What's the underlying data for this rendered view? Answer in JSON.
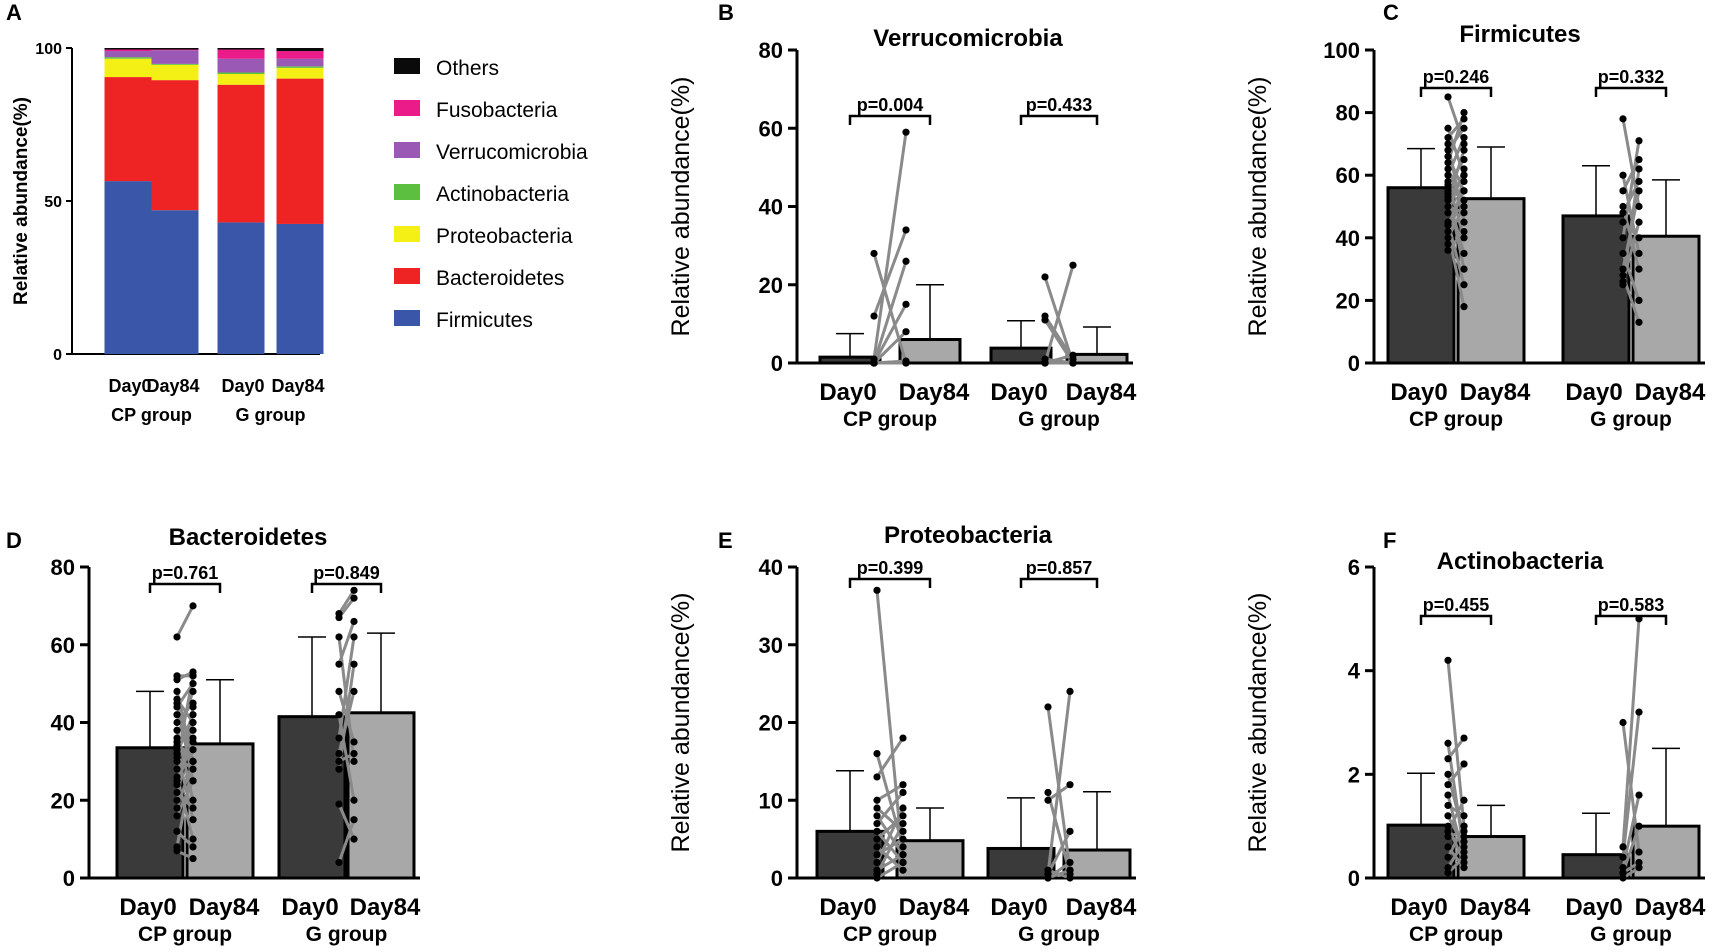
{
  "chart_data": [
    {
      "id": "A",
      "panel_label": "A",
      "type": "stacked-bar",
      "title": "",
      "xlabel": "",
      "ylabel": "Relative abundance(%)",
      "ylim": [
        0,
        100
      ],
      "yticks": [
        "0",
        "50",
        "100"
      ],
      "categories": [
        "Day0",
        "Day84",
        "Day0",
        "Day84"
      ],
      "groups": [
        "CP group",
        "G group"
      ],
      "legend_order": [
        "Others",
        "Fusobacteria",
        "Verrucomicrobia",
        "Actinobacteria",
        "Proteobacteria",
        "Bacteroidetes",
        "Firmicutes"
      ],
      "series": [
        {
          "name": "Firmicutes",
          "color": "#3a56a8",
          "values": [
            56.5,
            47.0,
            43.0,
            42.5
          ]
        },
        {
          "name": "Bacteroidetes",
          "color": "#ee2424",
          "values": [
            34.0,
            42.5,
            45.0,
            47.5
          ]
        },
        {
          "name": "Proteobacteria",
          "color": "#f4f015",
          "values": [
            6.0,
            5.0,
            3.5,
            3.5
          ]
        },
        {
          "name": "Actinobacteria",
          "color": "#5cbf40",
          "values": [
            0.5,
            0.3,
            0.5,
            0.5
          ]
        },
        {
          "name": "Verrucomicrobia",
          "color": "#9b59b6",
          "values": [
            2.0,
            4.5,
            4.5,
            2.5
          ]
        },
        {
          "name": "Fusobacteria",
          "color": "#ec1b8a",
          "values": [
            0.5,
            0.2,
            3.0,
            2.5
          ]
        },
        {
          "name": "Others",
          "color": "#0a0a0a",
          "values": [
            0.5,
            0.5,
            0.5,
            1.0
          ]
        }
      ]
    },
    {
      "id": "B",
      "panel_label": "B",
      "type": "bar",
      "title": "Verrucomicrobia",
      "ylabel": "Relative abundance(%)",
      "ylim": [
        0,
        80
      ],
      "yticks": [
        "0",
        "20",
        "40",
        "60",
        "80"
      ],
      "categories": [
        "Day0",
        "Day84",
        "Day0",
        "Day84"
      ],
      "groups": [
        "CP group",
        "G group"
      ],
      "means": [
        1.5,
        6.0,
        3.8,
        2.2
      ],
      "sd": [
        6.0,
        14.0,
        7.0,
        7.0
      ],
      "p_values": [
        "p=0.004",
        "p=0.433"
      ],
      "pairs_cp": [
        [
          28,
          0
        ],
        [
          12,
          34
        ],
        [
          1,
          59
        ],
        [
          0,
          26
        ],
        [
          0,
          15
        ],
        [
          0,
          8
        ],
        [
          0,
          0.5
        ],
        [
          0,
          0.3
        ],
        [
          0,
          0
        ],
        [
          0,
          0
        ]
      ],
      "pairs_g": [
        [
          22,
          0
        ],
        [
          12,
          1
        ],
        [
          11,
          0
        ],
        [
          0,
          25
        ],
        [
          0,
          2
        ],
        [
          0,
          0
        ],
        [
          0,
          0
        ],
        [
          1,
          0
        ]
      ]
    },
    {
      "id": "C",
      "panel_label": "C",
      "type": "bar",
      "title": "Firmicutes",
      "ylabel": "Relative abundance(%)",
      "ylim": [
        0,
        100
      ],
      "yticks": [
        "0",
        "20",
        "40",
        "60",
        "80",
        "100"
      ],
      "categories": [
        "Day0",
        "Day84",
        "Day0",
        "Day84"
      ],
      "groups": [
        "CP group",
        "G group"
      ],
      "means": [
        56.0,
        52.5,
        47.0,
        40.5
      ],
      "sd": [
        12.5,
        16.5,
        16.0,
        18.0
      ],
      "p_values": [
        "p=0.246",
        "p=0.332"
      ],
      "pairs_cp": [
        [
          85,
          70
        ],
        [
          75,
          60
        ],
        [
          72,
          78
        ],
        [
          70,
          45
        ],
        [
          68,
          75
        ],
        [
          66,
          55
        ],
        [
          64,
          80
        ],
        [
          62,
          50
        ],
        [
          60,
          72
        ],
        [
          58,
          40
        ],
        [
          57,
          65
        ],
        [
          56,
          52
        ],
        [
          55,
          30
        ],
        [
          54,
          58
        ],
        [
          53,
          35
        ],
        [
          52,
          68
        ],
        [
          50,
          48
        ],
        [
          48,
          62
        ],
        [
          45,
          25
        ],
        [
          44,
          55
        ],
        [
          42,
          18
        ],
        [
          40,
          50
        ],
        [
          38,
          60
        ],
        [
          36,
          42
        ]
      ],
      "pairs_g": [
        [
          78,
          50
        ],
        [
          60,
          35
        ],
        [
          55,
          65
        ],
        [
          50,
          30
        ],
        [
          48,
          58
        ],
        [
          45,
          40
        ],
        [
          40,
          71
        ],
        [
          35,
          20
        ],
        [
          30,
          55
        ],
        [
          28,
          13
        ],
        [
          26,
          45
        ],
        [
          25,
          62
        ]
      ]
    },
    {
      "id": "D",
      "panel_label": "D",
      "type": "bar",
      "title": "Bacteroidetes",
      "ylabel": "Relative abundance(%)",
      "ylim": [
        0,
        80
      ],
      "yticks": [
        "0",
        "20",
        "40",
        "60",
        "80"
      ],
      "categories": [
        "Day0",
        "Day84",
        "Day0",
        "Day84"
      ],
      "groups": [
        "CP group",
        "G group"
      ],
      "means": [
        33.5,
        34.5,
        41.5,
        42.5
      ],
      "sd": [
        14.5,
        16.5,
        20.5,
        20.5
      ],
      "p_values": [
        "p=0.761",
        "p=0.849"
      ],
      "pairs_cp": [
        [
          62,
          70
        ],
        [
          52,
          52
        ],
        [
          51,
          53
        ],
        [
          48,
          30
        ],
        [
          46,
          40
        ],
        [
          45,
          25
        ],
        [
          44,
          50
        ],
        [
          42,
          35
        ],
        [
          40,
          45
        ],
        [
          38,
          20
        ],
        [
          36,
          48
        ],
        [
          35,
          30
        ],
        [
          34,
          38
        ],
        [
          33,
          15
        ],
        [
          32,
          42
        ],
        [
          31,
          28
        ],
        [
          30,
          52
        ],
        [
          28,
          33
        ],
        [
          26,
          10
        ],
        [
          25,
          40
        ],
        [
          24,
          36
        ],
        [
          22,
          18
        ],
        [
          20,
          44
        ],
        [
          18,
          30
        ],
        [
          16,
          25
        ],
        [
          12,
          8
        ],
        [
          8,
          30
        ],
        [
          7,
          5
        ]
      ],
      "pairs_g": [
        [
          68,
          74
        ],
        [
          67,
          72
        ],
        [
          62,
          30
        ],
        [
          55,
          66
        ],
        [
          48,
          35
        ],
        [
          42,
          20
        ],
        [
          36,
          62
        ],
        [
          32,
          48
        ],
        [
          30,
          32
        ],
        [
          28,
          55
        ],
        [
          19,
          10
        ],
        [
          4,
          15
        ]
      ]
    },
    {
      "id": "E",
      "panel_label": "E",
      "type": "bar",
      "title": "Proteobacteria",
      "ylabel": "Relative abundance(%)",
      "ylim": [
        0,
        40
      ],
      "yticks": [
        "0",
        "10",
        "20",
        "30",
        "40"
      ],
      "categories": [
        "Day0",
        "Day84",
        "Day0",
        "Day84"
      ],
      "groups": [
        "CP group",
        "G group"
      ],
      "means": [
        6.0,
        4.8,
        3.8,
        3.6
      ],
      "sd": [
        7.8,
        4.2,
        6.5,
        7.5
      ],
      "p_values": [
        "p=0.399",
        "p=0.857"
      ],
      "pairs_cp": [
        [
          37,
          2
        ],
        [
          16,
          4
        ],
        [
          13,
          18
        ],
        [
          10,
          12
        ],
        [
          9,
          6
        ],
        [
          8,
          3
        ],
        [
          7,
          11
        ],
        [
          6,
          2
        ],
        [
          5,
          8
        ],
        [
          4,
          1
        ],
        [
          3,
          5
        ],
        [
          2,
          9
        ],
        [
          1,
          3
        ],
        [
          0.5,
          7
        ],
        [
          0,
          2
        ]
      ],
      "pairs_g": [
        [
          22,
          1
        ],
        [
          11,
          0.5
        ],
        [
          10,
          12
        ],
        [
          0.5,
          24
        ],
        [
          0.5,
          6
        ],
        [
          0,
          2
        ],
        [
          1,
          0
        ],
        [
          0,
          1
        ]
      ]
    },
    {
      "id": "F",
      "panel_label": "F",
      "type": "bar",
      "title": "Actinobacteria",
      "ylabel": "Relative abundance(%)",
      "ylim": [
        0,
        6
      ],
      "yticks": [
        "0",
        "2",
        "4",
        "6"
      ],
      "categories": [
        "Day0",
        "Day84",
        "Day0",
        "Day84"
      ],
      "groups": [
        "CP group",
        "G group"
      ],
      "means": [
        1.02,
        0.8,
        0.45,
        1.0
      ],
      "sd": [
        1.0,
        0.6,
        0.8,
        1.5
      ],
      "p_values": [
        "p=0.455",
        "p=0.583"
      ],
      "pairs_cp": [
        [
          4.2,
          1.0
        ],
        [
          2.6,
          0.5
        ],
        [
          2.3,
          2.7
        ],
        [
          2.0,
          0.8
        ],
        [
          1.8,
          2.2
        ],
        [
          1.6,
          0.4
        ],
        [
          1.4,
          1.2
        ],
        [
          1.2,
          0.6
        ],
        [
          1.0,
          0.3
        ],
        [
          0.9,
          1.5
        ],
        [
          0.8,
          0.9
        ],
        [
          0.6,
          0.2
        ],
        [
          0.4,
          1.0
        ],
        [
          0.2,
          0.7
        ],
        [
          0.1,
          0.4
        ]
      ],
      "pairs_g": [
        [
          3.0,
          0.5
        ],
        [
          0.6,
          5.0
        ],
        [
          0.4,
          3.2
        ],
        [
          0.2,
          1.6
        ],
        [
          0.1,
          0.3
        ],
        [
          0.1,
          1.0
        ],
        [
          0.0,
          0.2
        ]
      ]
    }
  ]
}
